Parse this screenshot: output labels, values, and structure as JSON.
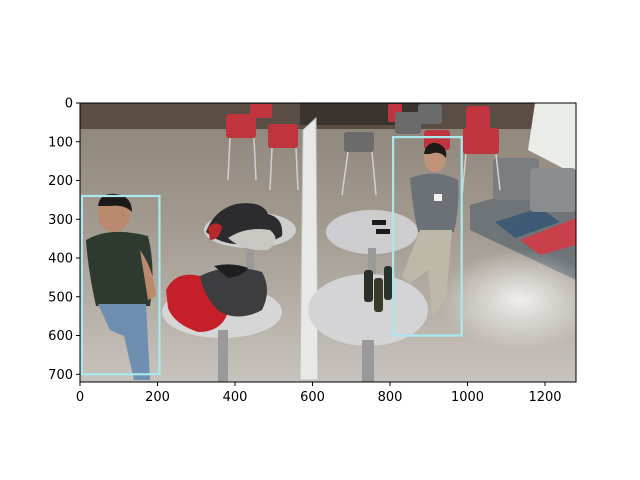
{
  "figure": {
    "image_extent": {
      "width": 1280,
      "height": 720
    },
    "x_axis": {
      "range": [
        0,
        1280
      ],
      "ticks": [
        0,
        200,
        400,
        600,
        800,
        1000,
        1200
      ],
      "labels": [
        "0",
        "200",
        "400",
        "600",
        "800",
        "1000",
        "1200"
      ]
    },
    "y_axis": {
      "range": [
        0,
        720
      ],
      "ticks": [
        0,
        100,
        200,
        300,
        400,
        500,
        600,
        700
      ],
      "labels": [
        "0",
        "100",
        "200",
        "300",
        "400",
        "500",
        "600",
        "700"
      ]
    },
    "scene": {
      "description_icon": "lobby-camera-frame",
      "box_color": "#a8e8ee"
    },
    "detections": [
      {
        "label": "person",
        "x1": 5,
        "y1": 240,
        "x2": 205,
        "y2": 700
      },
      {
        "label": "person",
        "x1": 808,
        "y1": 88,
        "x2": 985,
        "y2": 600
      }
    ]
  }
}
